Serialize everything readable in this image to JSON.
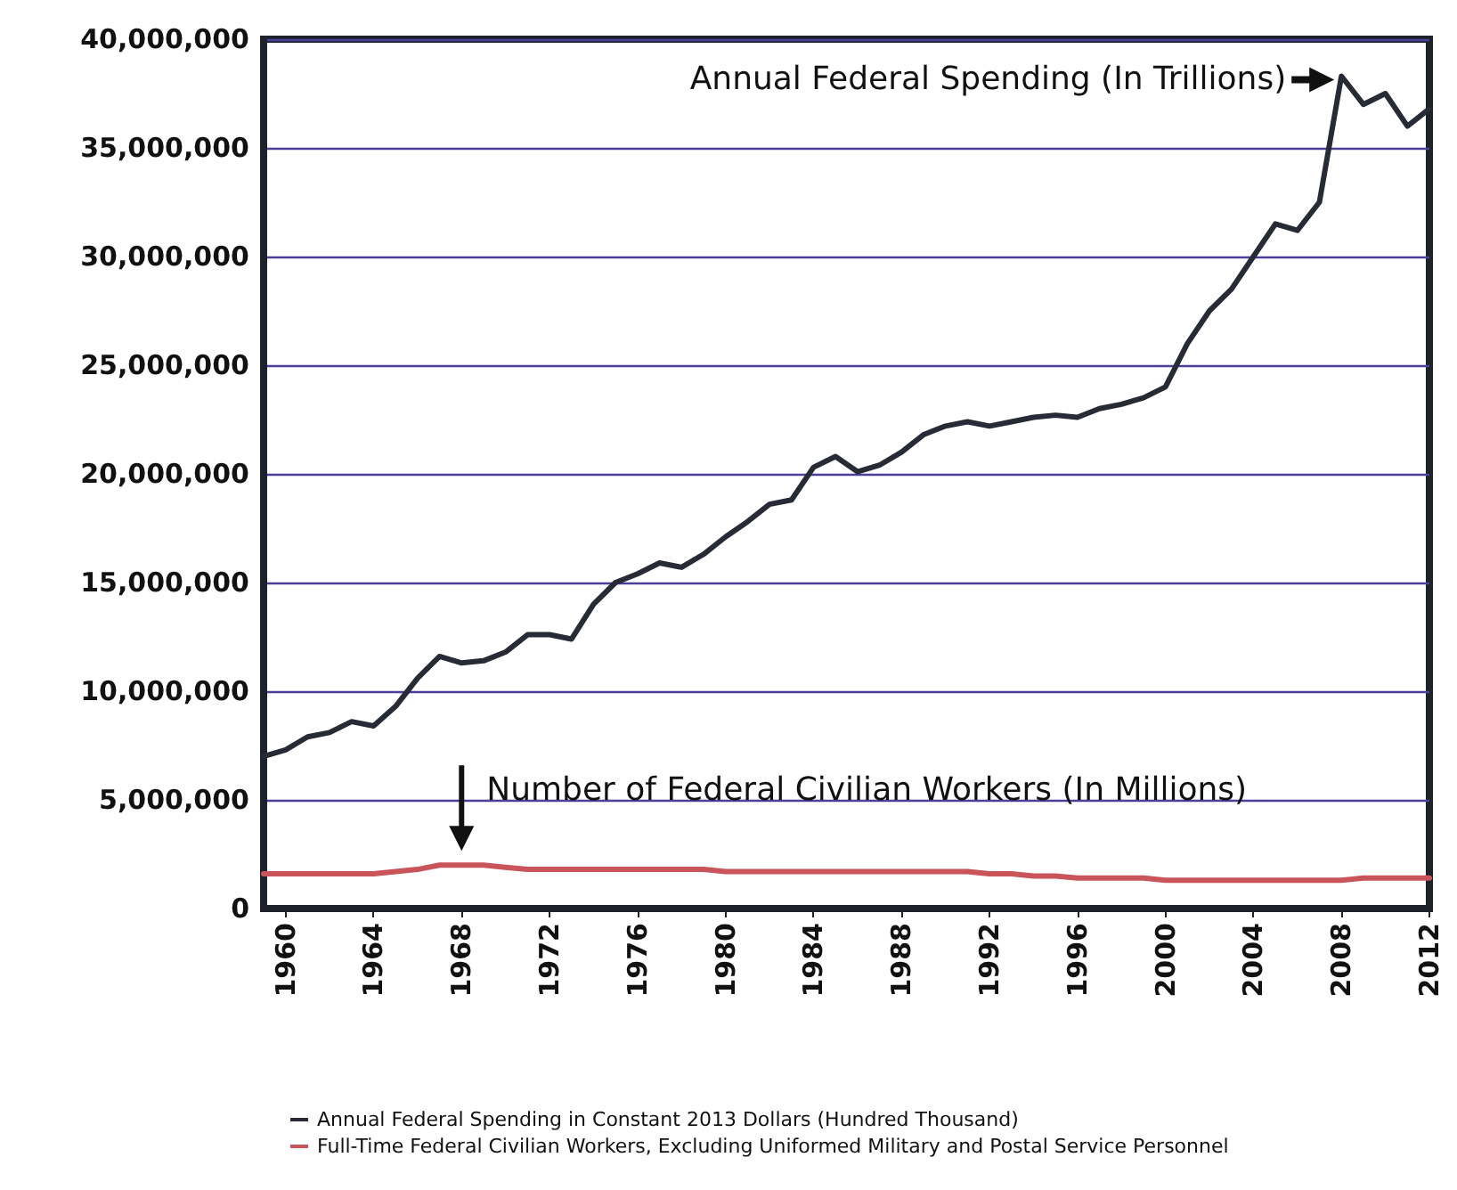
{
  "chart_data": {
    "type": "line",
    "x": [
      1959,
      1960,
      1961,
      1962,
      1963,
      1964,
      1965,
      1966,
      1967,
      1968,
      1969,
      1970,
      1971,
      1972,
      1973,
      1974,
      1975,
      1976,
      1977,
      1978,
      1979,
      1980,
      1981,
      1982,
      1983,
      1984,
      1985,
      1986,
      1987,
      1988,
      1989,
      1990,
      1991,
      1992,
      1993,
      1994,
      1995,
      1996,
      1997,
      1998,
      1999,
      2000,
      2001,
      2002,
      2003,
      2004,
      2005,
      2006,
      2007,
      2008,
      2009,
      2010,
      2011,
      2012
    ],
    "series": [
      {
        "name": "Annual Federal Spending in Constant 2013 Dollars (Hundred Thousand)",
        "color": "#262b36",
        "values": [
          7000000,
          7300000,
          7900000,
          8100000,
          8600000,
          8400000,
          9300000,
          10600000,
          11600000,
          11300000,
          11400000,
          11800000,
          12600000,
          12600000,
          12400000,
          14000000,
          15000000,
          15400000,
          15900000,
          15700000,
          16300000,
          17100000,
          17800000,
          18600000,
          18800000,
          20300000,
          20800000,
          20100000,
          20400000,
          21000000,
          21800000,
          22200000,
          22400000,
          22200000,
          22400000,
          22600000,
          22700000,
          22600000,
          23000000,
          23200000,
          23500000,
          24000000,
          26000000,
          27500000,
          28500000,
          30000000,
          31500000,
          31200000,
          32500000,
          38300000,
          37000000,
          37500000,
          36000000,
          36800000
        ]
      },
      {
        "name": "Full-Time Federal Civilian Workers, Excluding Uniformed Military and Postal Service Personnel",
        "color": "#c9545a",
        "values": [
          1600000,
          1600000,
          1600000,
          1600000,
          1600000,
          1600000,
          1700000,
          1800000,
          2000000,
          2000000,
          2000000,
          1900000,
          1800000,
          1800000,
          1800000,
          1800000,
          1800000,
          1800000,
          1800000,
          1800000,
          1800000,
          1700000,
          1700000,
          1700000,
          1700000,
          1700000,
          1700000,
          1700000,
          1700000,
          1700000,
          1700000,
          1700000,
          1700000,
          1600000,
          1600000,
          1500000,
          1500000,
          1400000,
          1400000,
          1400000,
          1400000,
          1300000,
          1300000,
          1300000,
          1300000,
          1300000,
          1300000,
          1300000,
          1300000,
          1300000,
          1400000,
          1400000,
          1400000,
          1400000
        ]
      }
    ],
    "xlim": [
      1959,
      2012
    ],
    "xticks": [
      1960,
      1964,
      1968,
      1972,
      1976,
      1980,
      1984,
      1988,
      1992,
      1996,
      2000,
      2004,
      2008,
      2012
    ],
    "ylim": [
      0,
      40000000
    ],
    "yticks": [
      0,
      {
        "value": 5000000,
        "label": "5,000,000"
      },
      {
        "value": 10000000,
        "label": "10,000,000"
      },
      {
        "value": 15000000,
        "label": "15,000,000"
      },
      {
        "value": 20000000,
        "label": "20,000,000"
      },
      {
        "value": 25000000,
        "label": "25,000,000"
      },
      {
        "value": 30000000,
        "label": "30,000,000"
      },
      {
        "value": 35000000,
        "label": "35,000,000"
      },
      {
        "value": 40000000,
        "label": "40,000,000"
      }
    ],
    "grid": "y",
    "legend": "bottom",
    "marker": "none",
    "line_style": "solid",
    "annotations": [
      {
        "text": "Annual Federal Spending (In Trillions)",
        "x": 2008,
        "y": 38300000
      },
      {
        "text": "Number of Federal Civilian Workers (In Millions)",
        "x": 1968,
        "y": 2000000
      }
    ]
  }
}
